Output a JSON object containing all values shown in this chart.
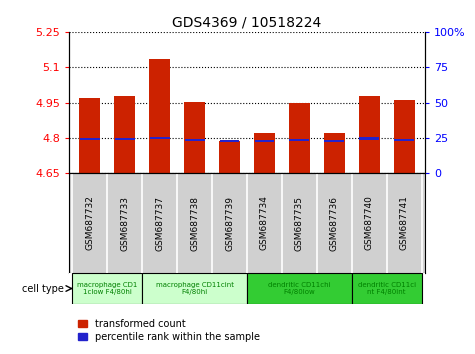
{
  "title": "GDS4369 / 10518224",
  "samples": [
    "GSM687732",
    "GSM687733",
    "GSM687737",
    "GSM687738",
    "GSM687739",
    "GSM687734",
    "GSM687735",
    "GSM687736",
    "GSM687740",
    "GSM687741"
  ],
  "transformed_count": [
    4.968,
    4.978,
    5.135,
    4.953,
    4.787,
    4.822,
    4.95,
    4.822,
    4.978,
    4.962
  ],
  "percentile_rank": [
    4.795,
    4.795,
    4.8,
    4.793,
    4.786,
    4.788,
    4.793,
    4.787,
    4.798,
    4.793
  ],
  "ylim": [
    4.65,
    5.25
  ],
  "yticks_left": [
    4.65,
    4.8,
    4.95,
    5.1,
    5.25
  ],
  "yticks_right": [
    0,
    25,
    50,
    75,
    100
  ],
  "right_ylim": [
    0,
    100
  ],
  "bar_color": "#cc2200",
  "blue_color": "#2222cc",
  "bar_width": 0.6,
  "cell_groups": [
    {
      "label": "macrophage CD1\n1clow F4/80hi",
      "start": 0,
      "end": 2,
      "color": "#ccffcc"
    },
    {
      "label": "macrophage CD11cint\nF4/80hi",
      "start": 2,
      "end": 5,
      "color": "#ccffcc"
    },
    {
      "label": "dendritic CD11chi\nF4/80low",
      "start": 5,
      "end": 8,
      "color": "#33cc33"
    },
    {
      "label": "dendritic CD11ci\nnt F4/80int",
      "start": 8,
      "end": 10,
      "color": "#33cc33"
    }
  ],
  "legend_red": "transformed count",
  "legend_blue": "percentile rank within the sample",
  "cell_type_label": "cell type"
}
